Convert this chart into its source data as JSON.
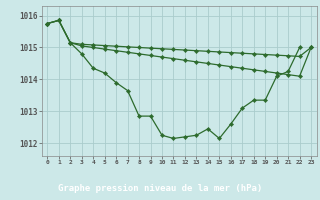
{
  "title": "Graphe pression niveau de la mer (hPa)",
  "bg_color": "#cce8e8",
  "label_bar_color": "#2d6b2d",
  "grid_color": "#aacccc",
  "line_color": "#2d6b2d",
  "xlim": [
    -0.5,
    23.5
  ],
  "ylim": [
    1011.6,
    1016.3
  ],
  "yticks": [
    1012,
    1013,
    1014,
    1015,
    1016
  ],
  "xticks": [
    0,
    1,
    2,
    3,
    4,
    5,
    6,
    7,
    8,
    9,
    10,
    11,
    12,
    13,
    14,
    15,
    16,
    17,
    18,
    19,
    20,
    21,
    22,
    23
  ],
  "series1": [
    1015.75,
    1015.85,
    1015.15,
    1014.8,
    1014.35,
    1014.2,
    1013.9,
    1013.65,
    1012.85,
    1012.85,
    1012.25,
    1012.15,
    1012.2,
    1012.25,
    1012.45,
    1012.15,
    1012.6,
    1013.1,
    1013.35,
    1013.35,
    1014.1,
    1014.25,
    1015.0,
    null
  ],
  "series2": [
    1015.75,
    1015.85,
    1015.15,
    1015.05,
    1015.0,
    1014.95,
    1014.9,
    1014.85,
    1014.8,
    1014.75,
    1014.7,
    1014.65,
    1014.6,
    1014.55,
    1014.5,
    1014.45,
    1014.4,
    1014.35,
    1014.3,
    1014.25,
    1014.2,
    1014.15,
    1014.1,
    1015.0
  ],
  "series3": [
    1015.75,
    1015.85,
    1015.15,
    1015.1,
    1015.08,
    1015.06,
    1015.04,
    1015.02,
    1015.0,
    1014.98,
    1014.96,
    1014.94,
    1014.92,
    1014.9,
    1014.88,
    1014.86,
    1014.84,
    1014.82,
    1014.8,
    1014.78,
    1014.76,
    1014.74,
    1014.72,
    1015.0
  ]
}
